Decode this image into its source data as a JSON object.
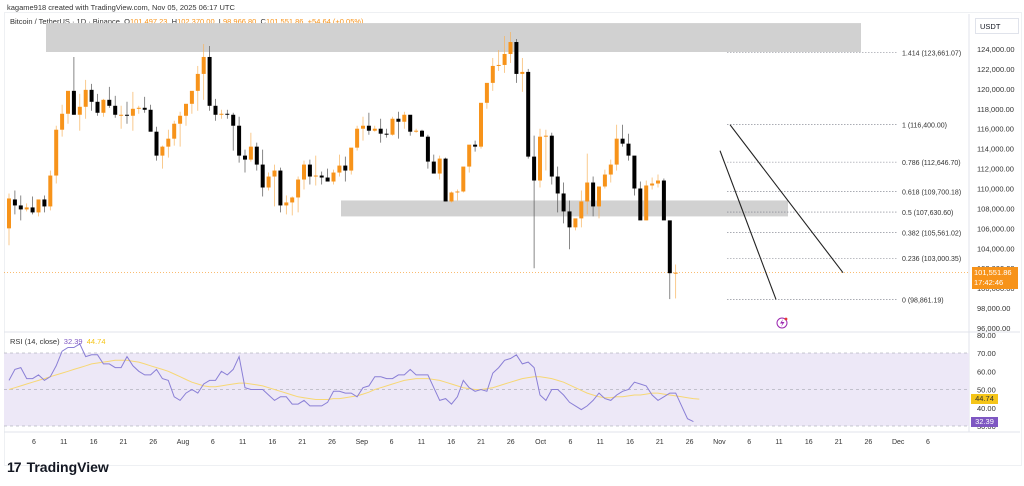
{
  "header": {
    "credit": "kagame918 created with TradingView.com, Nov 05, 2025 06:17 UTC",
    "symbol": "Bitcoin / TetherUS · 1D · Binance",
    "ohlc": {
      "o_label": "O",
      "o": "101,497.23",
      "h_label": "H",
      "h": "102,370.00",
      "l_label": "L",
      "l": "98,966.80",
      "c_label": "C",
      "c": "101,551.86",
      "change": "+54.64 (+0.05%)"
    }
  },
  "price_axis": {
    "currency": "USDT",
    "ticks": [
      "124,000.00",
      "122,000.00",
      "120,000.00",
      "118,000.00",
      "116,000.00",
      "114,000.00",
      "112,000.00",
      "110,000.00",
      "108,000.00",
      "106,000.00",
      "104,000.00",
      "102,000.00",
      "100,000.00",
      "98,000.00",
      "96,000.00"
    ],
    "last_price": "101,551.86",
    "countdown": "17:42:46"
  },
  "fib_levels": [
    {
      "label": "1.414 (123,661.07)"
    },
    {
      "label": "1 (116,400.00)"
    },
    {
      "label": "0.786 (112,646.70)"
    },
    {
      "label": "0.618 (109,700.18)"
    },
    {
      "label": "0.5 (107,630.60)"
    },
    {
      "label": "0.382 (105,561.02)"
    },
    {
      "label": "0.236 (103,000.35)"
    },
    {
      "label": "0 (98,861.19)"
    }
  ],
  "rsi": {
    "title": "RSI (14, close)",
    "value": "32.39",
    "ma_value": "44.74",
    "axis_ticks": [
      "80.00",
      "70.00",
      "60.00",
      "50.00",
      "40.00",
      "30.00"
    ],
    "rsi_color": "#7e57c2",
    "ma_color": "#f5c518"
  },
  "time_axis": {
    "labels": [
      "6",
      "11",
      "16",
      "21",
      "26",
      "Aug",
      "6",
      "11",
      "16",
      "21",
      "26",
      "Sep",
      "6",
      "11",
      "16",
      "21",
      "26",
      "Oct",
      "6",
      "11",
      "16",
      "21",
      "26",
      "Nov",
      "6",
      "11",
      "16",
      "21",
      "26",
      "Dec",
      "6"
    ]
  },
  "footer": {
    "brand": "TradingView",
    "logo_mark": "17"
  },
  "colors": {
    "up": "#f7931a",
    "down": "#000000",
    "zone": "#d1d1d1",
    "rsi_band": "#ede8f7"
  },
  "chart_data": {
    "type": "candlestick",
    "title": "Bitcoin / TetherUS · 1D · Binance",
    "xlabel": "",
    "ylabel": "USDT",
    "ylim": [
      95000,
      126000
    ],
    "x_range": [
      "2025-07-01",
      "2025-12-06"
    ],
    "legend": [],
    "annotations": [
      "Resistance zone ~123,700–126,500",
      "Support zone ~107,200–108,800",
      "Fibonacci retracement 0 (98,861.19) to 1.414 (123,661.07)",
      "Descending falling-wedge trendlines from Oct 27 to Nov 4"
    ],
    "ohlc_last": {
      "open": 101497.23,
      "high": 102370.0,
      "low": 98966.8,
      "close": 101551.86,
      "change": 54.64,
      "change_pct": 0.05
    },
    "price_points_approx": [
      {
        "date": "Jul 1",
        "close": 105700
      },
      {
        "date": "Jul 4",
        "close": 108000
      },
      {
        "date": "Jul 9",
        "close": 111200
      },
      {
        "date": "Jul 11",
        "close": 117500
      },
      {
        "date": "Jul 14",
        "close": 119800
      },
      {
        "date": "Jul 18",
        "close": 117800
      },
      {
        "date": "Jul 25",
        "close": 117500
      },
      {
        "date": "Jul 31",
        "close": 115700
      },
      {
        "date": "Aug 2",
        "close": 113300
      },
      {
        "date": "Aug 9",
        "close": 116500
      },
      {
        "date": "Aug 13",
        "close": 123300
      },
      {
        "date": "Aug 14",
        "close": 118300
      },
      {
        "date": "Aug 20",
        "close": 114200
      },
      {
        "date": "Aug 25",
        "close": 110100
      },
      {
        "date": "Aug 31",
        "close": 108300
      },
      {
        "date": "Sep 5",
        "close": 111000
      },
      {
        "date": "Sep 13",
        "close": 116000
      },
      {
        "date": "Sep 18",
        "close": 117100
      },
      {
        "date": "Sep 22",
        "close": 112700
      },
      {
        "date": "Sep 25",
        "close": 109000
      },
      {
        "date": "Oct 1",
        "close": 118600
      },
      {
        "date": "Oct 6",
        "close": 124700
      },
      {
        "date": "Oct 9",
        "close": 121700
      },
      {
        "date": "Oct 10",
        "close": 113200
      },
      {
        "date": "Oct 13",
        "close": 115200
      },
      {
        "date": "Oct 17",
        "close": 106400
      },
      {
        "date": "Oct 22",
        "close": 107600
      },
      {
        "date": "Oct 27",
        "close": 114500
      },
      {
        "date": "Oct 29",
        "close": 110000
      },
      {
        "date": "Nov 2",
        "close": 110500
      },
      {
        "date": "Nov 3",
        "close": 106500
      },
      {
        "date": "Nov 4",
        "close": 101500
      },
      {
        "date": "Nov 5",
        "close": 101551.86
      }
    ],
    "rsi_series": {
      "name": "RSI (14, close)",
      "last": 32.39,
      "range": [
        30,
        80
      ],
      "bands": [
        70,
        50,
        30
      ]
    },
    "rsi_ma_series": {
      "name": "RSI MA",
      "last": 44.74
    }
  }
}
